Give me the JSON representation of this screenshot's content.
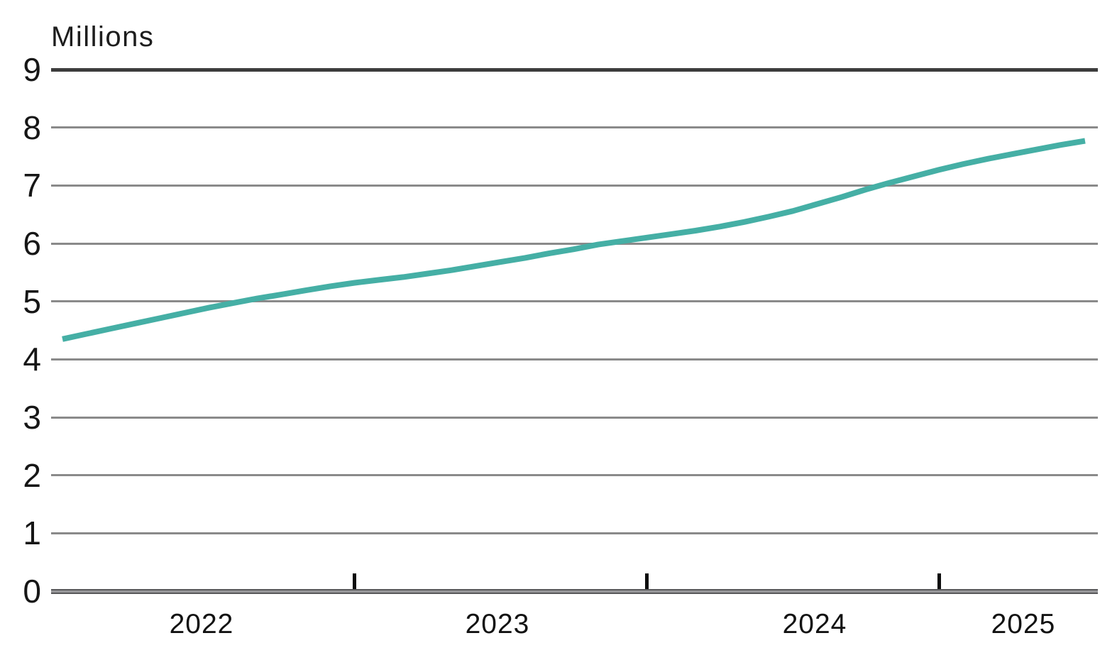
{
  "chart_data": {
    "type": "line",
    "title": "",
    "unit_label": "Millions",
    "ylabel": "Millions",
    "xlabel": "",
    "ylim": [
      0,
      9
    ],
    "yticks": [
      0,
      1,
      2,
      3,
      4,
      5,
      6,
      7,
      8,
      9
    ],
    "grid": "horizontal-on",
    "legend": "none",
    "x_frequency": "monthly",
    "x": [
      "Jan 2022",
      "Feb 2022",
      "Mar 2022",
      "Apr 2022",
      "May 2022",
      "Jun 2022",
      "Jul 2022",
      "Aug 2022",
      "Sep 2022",
      "Oct 2022",
      "Nov 2022",
      "Dec 2022",
      "Jan 2023",
      "Feb 2023",
      "Mar 2023",
      "Apr 2023",
      "May 2023",
      "Jun 2023",
      "Jul 2023",
      "Aug 2023",
      "Sep 2023",
      "Oct 2023",
      "Nov 2023",
      "Dec 2023",
      "Jan 2024",
      "Feb 2024",
      "Mar 2024",
      "Apr 2024",
      "May 2024",
      "Jun 2024",
      "Jul 2024",
      "Aug 2024",
      "Sep 2024",
      "Oct 2024",
      "Nov 2024",
      "Dec 2024",
      "Jan 2025",
      "Feb 2025",
      "Mar 2025",
      "Apr 2025",
      "May 2025",
      "Jun 2025",
      "Jul 2025"
    ],
    "series": [
      {
        "name": "Millions",
        "values": [
          4.35,
          4.44,
          4.53,
          4.62,
          4.71,
          4.8,
          4.89,
          4.97,
          5.05,
          5.12,
          5.19,
          5.26,
          5.32,
          5.37,
          5.42,
          5.48,
          5.54,
          5.61,
          5.68,
          5.75,
          5.83,
          5.9,
          5.98,
          6.04,
          6.1,
          6.16,
          6.22,
          6.29,
          6.37,
          6.46,
          6.56,
          6.68,
          6.8,
          6.93,
          7.05,
          7.16,
          7.27,
          7.37,
          7.46,
          7.54,
          7.62,
          7.7,
          7.77
        ]
      }
    ],
    "x_year_labels": [
      "2022",
      "2023",
      "2024",
      "2025"
    ],
    "x_tick_boundaries": [
      "Jan 2023",
      "Jan 2024",
      "Jan 2025"
    ],
    "colors": {
      "line": "#45afa5",
      "gridline": "#8a8a8a",
      "top_rule": "#3c3c3c",
      "axis_rule": "#59595b",
      "axis_rule_fill": "#98989b",
      "tick": "#0d0d0d",
      "text": "#161616"
    }
  }
}
